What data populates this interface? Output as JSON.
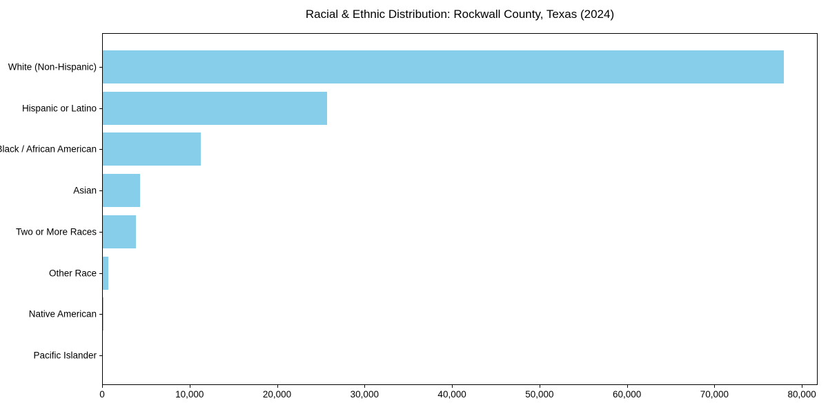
{
  "chart_data": {
    "type": "bar",
    "orientation": "horizontal",
    "title": "Racial & Ethnic Distribution: Rockwall County, Texas (2024)",
    "categories": [
      "White (Non-Hispanic)",
      "Hispanic or Latino",
      "Black / African American",
      "Asian",
      "Two or More Races",
      "Other Race",
      "Native American",
      "Pacific Islander"
    ],
    "values": [
      77900,
      25700,
      11300,
      4300,
      3900,
      700,
      150,
      50
    ],
    "xlabel": "",
    "ylabel": "",
    "xlim": [
      0,
      81800
    ],
    "xticks": [
      {
        "value": 0,
        "label": "0"
      },
      {
        "value": 10000,
        "label": "10,000"
      },
      {
        "value": 20000,
        "label": "20,000"
      },
      {
        "value": 30000,
        "label": "30,000"
      },
      {
        "value": 40000,
        "label": "40,000"
      },
      {
        "value": 50000,
        "label": "50,000"
      },
      {
        "value": 60000,
        "label": "60,000"
      },
      {
        "value": 70000,
        "label": "70,000"
      },
      {
        "value": 80000,
        "label": "80,000"
      }
    ],
    "grid": false,
    "legend": null,
    "bar_color": "#87ceeb",
    "spine_color": "#000000",
    "text_color": "#000000",
    "background_color": "#ffffff"
  }
}
